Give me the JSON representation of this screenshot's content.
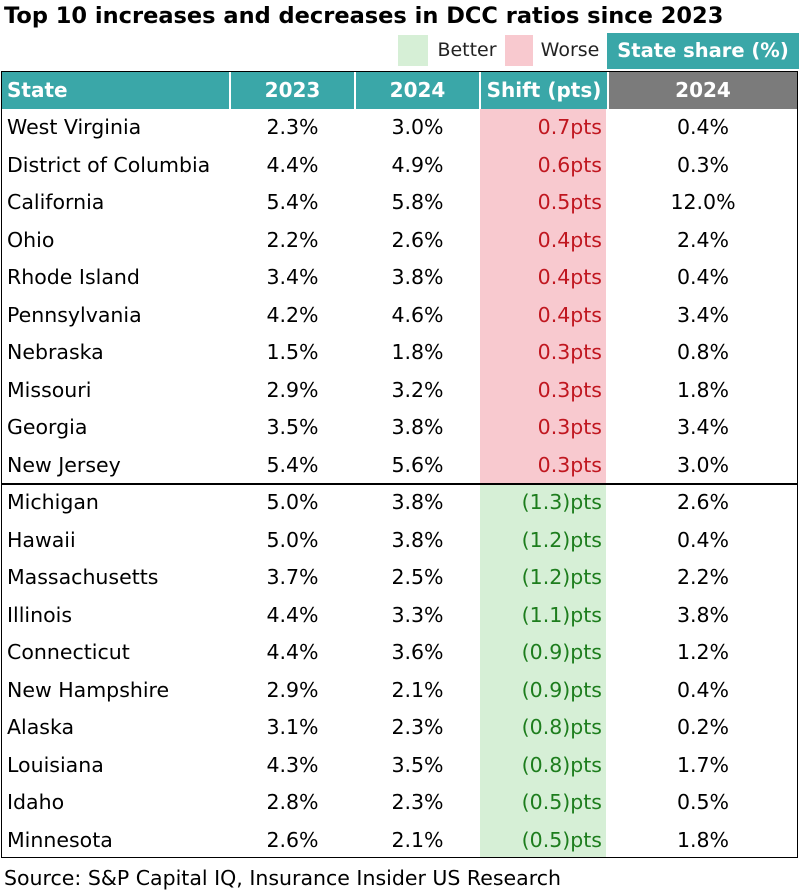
{
  "title": "Top 10 increases and decreases in DCC ratios since 2023",
  "legend": {
    "better_label": "Better",
    "worse_label": "Worse",
    "better_color": "#d6efd6",
    "worse_color": "#f8c9cf",
    "share_label": "State share (%)"
  },
  "headers": {
    "state": "State",
    "y2023": "2023",
    "y2024": "2024",
    "shift": "Shift (pts)",
    "share_2024": "2024"
  },
  "worse_rows": [
    {
      "state": "West Virginia",
      "y2023": "2.3%",
      "y2024": "3.0%",
      "shift": "0.7pts",
      "share": "0.4%"
    },
    {
      "state": "District of Columbia",
      "y2023": "4.4%",
      "y2024": "4.9%",
      "shift": "0.6pts",
      "share": "0.3%"
    },
    {
      "state": "California",
      "y2023": "5.4%",
      "y2024": "5.8%",
      "shift": "0.5pts",
      "share": "12.0%"
    },
    {
      "state": "Ohio",
      "y2023": "2.2%",
      "y2024": "2.6%",
      "shift": "0.4pts",
      "share": "2.4%"
    },
    {
      "state": "Rhode Island",
      "y2023": "3.4%",
      "y2024": "3.8%",
      "shift": "0.4pts",
      "share": "0.4%"
    },
    {
      "state": "Pennsylvania",
      "y2023": "4.2%",
      "y2024": "4.6%",
      "shift": "0.4pts",
      "share": "3.4%"
    },
    {
      "state": "Nebraska",
      "y2023": "1.5%",
      "y2024": "1.8%",
      "shift": "0.3pts",
      "share": "0.8%"
    },
    {
      "state": "Missouri",
      "y2023": "2.9%",
      "y2024": "3.2%",
      "shift": "0.3pts",
      "share": "1.8%"
    },
    {
      "state": "Georgia",
      "y2023": "3.5%",
      "y2024": "3.8%",
      "shift": "0.3pts",
      "share": "3.4%"
    },
    {
      "state": "New Jersey",
      "y2023": "5.4%",
      "y2024": "5.6%",
      "shift": "0.3pts",
      "share": "3.0%"
    }
  ],
  "better_rows": [
    {
      "state": "Michigan",
      "y2023": "5.0%",
      "y2024": "3.8%",
      "shift": "(1.3)pts",
      "share": "2.6%"
    },
    {
      "state": "Hawaii",
      "y2023": "5.0%",
      "y2024": "3.8%",
      "shift": "(1.2)pts",
      "share": "0.4%"
    },
    {
      "state": "Massachusetts",
      "y2023": "3.7%",
      "y2024": "2.5%",
      "shift": "(1.2)pts",
      "share": "2.2%"
    },
    {
      "state": "Illinois",
      "y2023": "4.4%",
      "y2024": "3.3%",
      "shift": "(1.1)pts",
      "share": "3.8%"
    },
    {
      "state": "Connecticut",
      "y2023": "4.4%",
      "y2024": "3.6%",
      "shift": "(0.9)pts",
      "share": "1.2%"
    },
    {
      "state": "New Hampshire",
      "y2023": "2.9%",
      "y2024": "2.1%",
      "shift": "(0.9)pts",
      "share": "0.4%"
    },
    {
      "state": "Alaska",
      "y2023": "3.1%",
      "y2024": "2.3%",
      "shift": "(0.8)pts",
      "share": "0.2%"
    },
    {
      "state": "Louisiana",
      "y2023": "4.3%",
      "y2024": "3.5%",
      "shift": "(0.8)pts",
      "share": "1.7%"
    },
    {
      "state": "Idaho",
      "y2023": "2.8%",
      "y2024": "2.3%",
      "shift": "(0.5)pts",
      "share": "0.5%"
    },
    {
      "state": "Minnesota",
      "y2023": "2.6%",
      "y2024": "2.1%",
      "shift": "(0.5)pts",
      "share": "1.8%"
    }
  ],
  "source": "Source: S&P Capital IQ, Insurance Insider US Research"
}
